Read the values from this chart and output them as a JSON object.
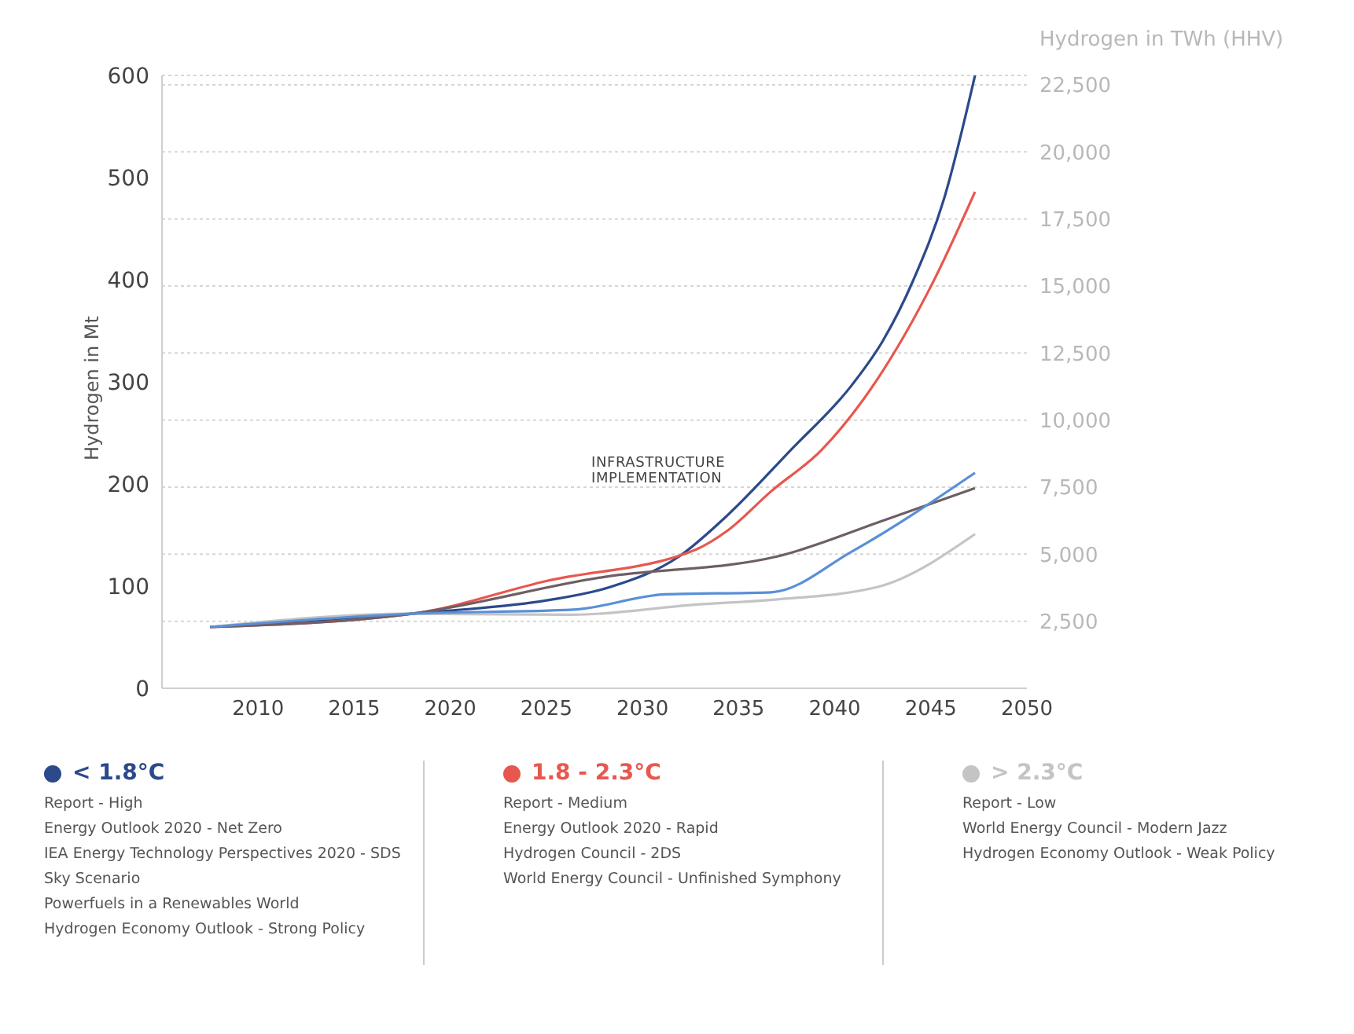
{
  "chart_data": {
    "type": "line",
    "ylabel": "Hydrogen in Mt",
    "y2label": "Hydrogen in TWh (HHV)",
    "xlim": [
      2005,
      2050
    ],
    "xticks": [
      2010,
      2015,
      2020,
      2025,
      2030,
      2035,
      2040,
      2045,
      2050
    ],
    "ylim": [
      0,
      600
    ],
    "yticks": [
      0,
      100,
      200,
      300,
      400,
      500,
      600
    ],
    "y2lim": [
      0,
      22850
    ],
    "y2ticks": [
      {
        "value": 2500,
        "label": "2,500"
      },
      {
        "value": 5000,
        "label": "5,000"
      },
      {
        "value": 7500,
        "label": "7,500"
      },
      {
        "value": 10000,
        "label": "10,000"
      },
      {
        "value": 12500,
        "label": "12,500"
      },
      {
        "value": 15000,
        "label": "15,000"
      },
      {
        "value": 17500,
        "label": "17,500"
      },
      {
        "value": 20000,
        "label": "20,000"
      },
      {
        "value": 22500,
        "label": "22,500"
      }
    ],
    "grid": "y2",
    "legend": "bottom",
    "marker": "none",
    "line_style": "solid",
    "series": [
      {
        "name": "< 1.8°C",
        "color": "#2b4a8c",
        "x": [
          2007.5,
          2018,
          2020,
          2025,
          2028.3,
          2031.9,
          2034.4,
          2037.7,
          2040.9,
          2042.5,
          2044.1,
          2045.7,
          2047.3
        ],
        "values": [
          60,
          73,
          76,
          86,
          99,
          129,
          169,
          233,
          297,
          340,
          400,
          480,
          600
        ]
      },
      {
        "name": "1.8 - 2.3°C",
        "color": "#e8574e",
        "x": [
          2007.5,
          2018,
          2025,
          2032.8,
          2034.4,
          2036.7,
          2039.3,
          2042.2,
          2045.1,
          2047.3
        ],
        "values": [
          60,
          73,
          105,
          136,
          154,
          193,
          233,
          302,
          397,
          486
        ]
      },
      {
        "name": "> 2.3°C",
        "color": "#c4c4c4",
        "x": [
          2007.5,
          2018,
          2026.4,
          2032.8,
          2037,
          2042.2,
          2047.3
        ],
        "values": [
          60,
          73,
          72,
          82,
          87,
          99,
          151
        ]
      },
      {
        "color": "#6e5f63",
        "x": [
          2007.5,
          2018,
          2028,
          2037,
          2042.5,
          2047.3
        ],
        "values": [
          60,
          73,
          109,
          129,
          164,
          196
        ]
      },
      {
        "color": "#5a8fd8",
        "x": [
          2007.5,
          2018,
          2026.4,
          2031.2,
          2036.7,
          2040.9,
          2047.3
        ],
        "values": [
          60,
          73,
          77,
          92,
          94,
          134,
          211
        ]
      }
    ],
    "annotations": [
      "INFRASTRUCTURE\nIMPLEMENTATION",
      "Report - High\nEnergy Outlook 2020 - Net Zero\nIEA Energy Technology Perspectives 2020 - SDS\nSky Scenario\nPowerfuels in a Renewables World\nHydrogen Economy Outlook - Strong Policy",
      "Report - Medium\nEnergy Outlook 2020 - Rapid\nHydrogen Council - 2DS\nWorld Energy Council - Unfinished Symphony",
      "Report - Low\nWorld Energy Council - Modern Jazz\nHydrogen Economy Outlook - Weak Policy"
    ]
  }
}
